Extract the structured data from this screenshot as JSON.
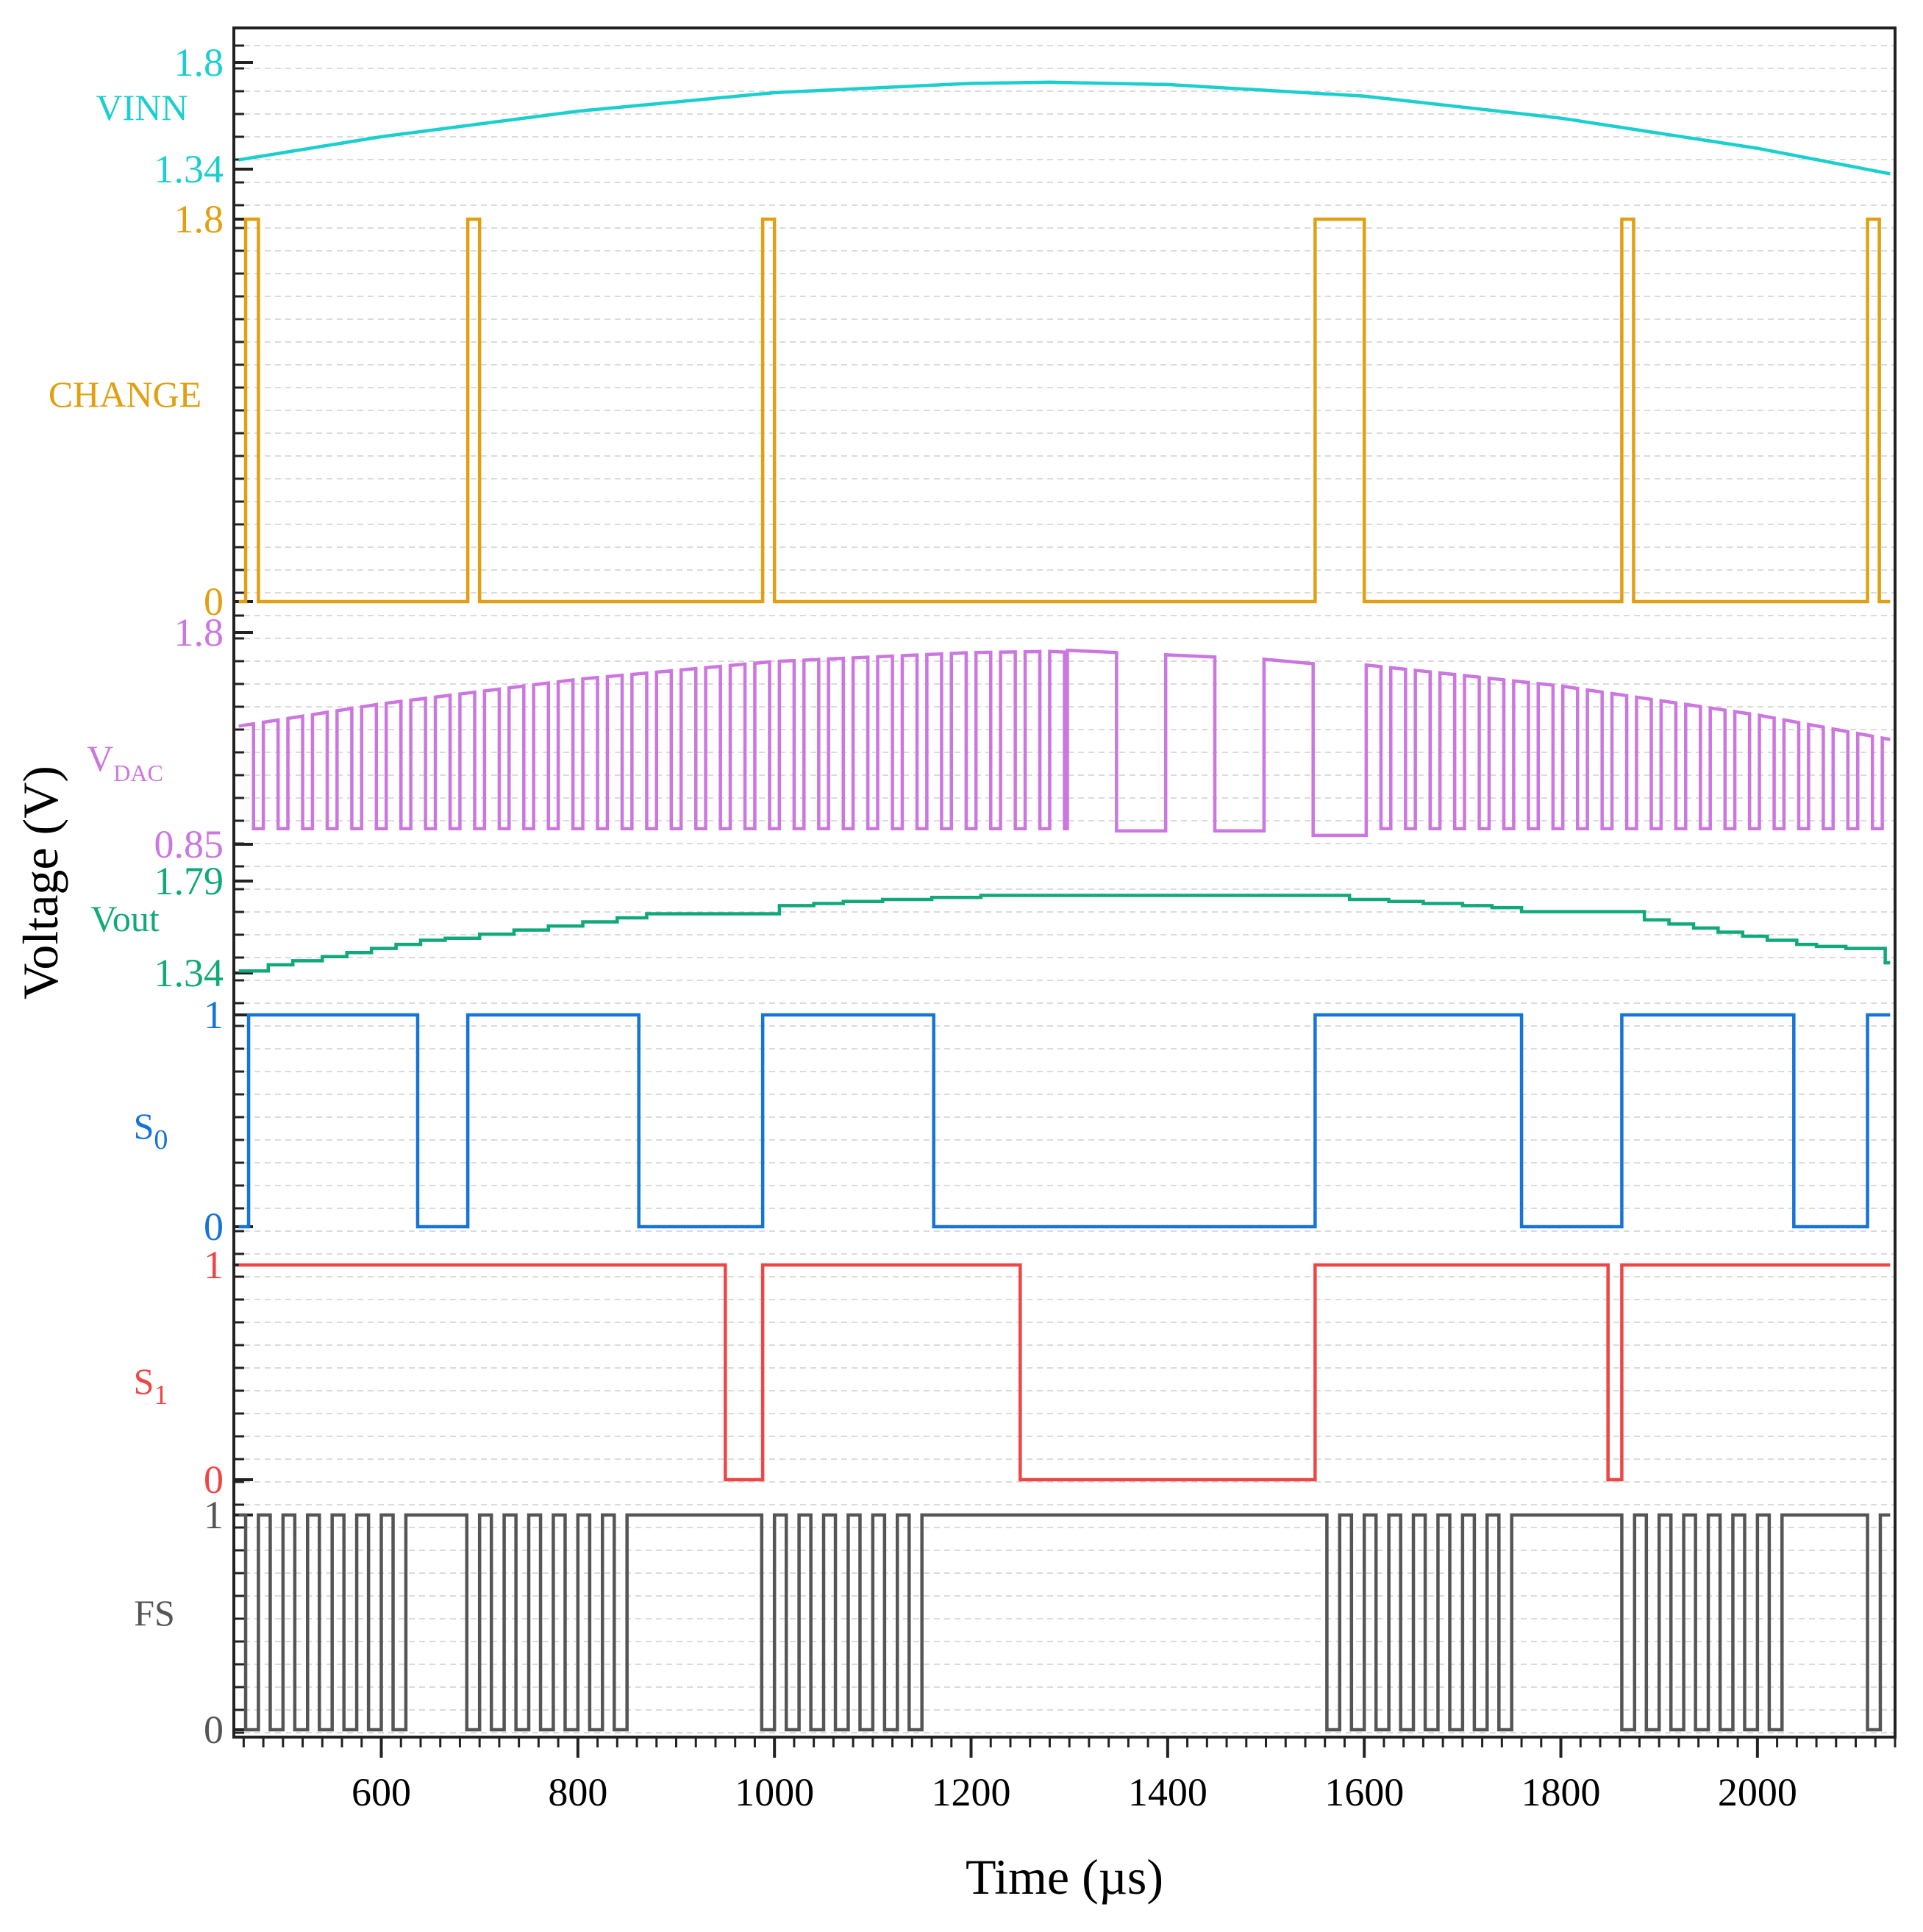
{
  "chart_data": {
    "type": "line",
    "title": "",
    "xlabel": "Time (µs)",
    "ylabel": "Voltage (V)",
    "xlim": [
      450,
      2140
    ],
    "x_ticks": [
      600,
      800,
      1000,
      1200,
      1400,
      1600,
      1800,
      2000
    ],
    "x_tick_labels": [
      "600",
      "800",
      "1000",
      "1200",
      "1400",
      "1600",
      "1800",
      "2000"
    ],
    "grid": "horizontal dashed",
    "series": [
      {
        "name": "VINN",
        "label": "VINN",
        "color": "#1ccfcf",
        "kind": "smooth",
        "ylim": [
          1.34,
          1.8
        ],
        "tick_labels": [
          {
            "value": 1.8,
            "text": "1.8"
          },
          {
            "value": 1.34,
            "text": "1.34"
          }
        ],
        "x": [
          455,
          600,
          800,
          1000,
          1200,
          1280,
          1400,
          1600,
          1800,
          2000,
          2135
        ],
        "y": [
          1.38,
          1.48,
          1.59,
          1.67,
          1.71,
          1.715,
          1.705,
          1.655,
          1.56,
          1.43,
          1.32
        ]
      },
      {
        "name": "CHANGE",
        "label": "CHANGE",
        "color": "#e1a012",
        "kind": "pulses",
        "ylim": [
          0,
          1.8
        ],
        "tick_labels": [
          {
            "value": 1.8,
            "text": "1.8"
          },
          {
            "value": 0,
            "text": "0"
          }
        ],
        "pulses": [
          [
            462,
            475
          ],
          [
            688,
            700
          ],
          [
            988,
            1000
          ],
          [
            1550,
            1600
          ],
          [
            1862,
            1874
          ],
          [
            2112,
            2124
          ]
        ]
      },
      {
        "name": "VDAC",
        "label": "V",
        "label_subscript": "DAC",
        "color": "#cc77e0",
        "kind": "dac",
        "ylim": [
          0.85,
          1.8
        ],
        "tick_labels": [
          {
            "value": 1.8,
            "text": "1.8"
          },
          {
            "value": 0.85,
            "text": "0.85"
          }
        ],
        "square_segments": [
          [
            455,
            1298
          ],
          [
            1602,
            2135
          ]
        ],
        "square_period": 25,
        "low_level": 0.92,
        "high_envelope_x": [
          455,
          600,
          800,
          1000,
          1200,
          1280,
          1600,
          1800,
          2000,
          2135
        ],
        "high_envelope_y": [
          1.38,
          1.48,
          1.59,
          1.67,
          1.71,
          1.715,
          1.655,
          1.56,
          1.43,
          1.32
        ],
        "blocks": [
          {
            "x0": 1298,
            "x1": 1348,
            "y0": 1.72,
            "y1": 1.71
          },
          {
            "x0": 1348,
            "x1": 1398,
            "y0": 0.91,
            "y1": 0.91
          },
          {
            "x0": 1398,
            "x1": 1448,
            "y0": 1.7,
            "y1": 1.69
          },
          {
            "x0": 1448,
            "x1": 1498,
            "y0": 0.91,
            "y1": 0.91
          },
          {
            "x0": 1498,
            "x1": 1548,
            "y0": 1.68,
            "y1": 1.66
          },
          {
            "x0": 1548,
            "x1": 1602,
            "y0": 0.89,
            "y1": 0.89
          }
        ]
      },
      {
        "name": "Vout",
        "label": "Vout",
        "color": "#11a97a",
        "kind": "staircase",
        "ylim": [
          1.34,
          1.79
        ],
        "tick_labels": [
          {
            "value": 1.79,
            "text": "1.79"
          },
          {
            "value": 1.34,
            "text": "1.34"
          }
        ],
        "steps": [
          {
            "x": 455,
            "y": 1.35
          },
          {
            "x": 485,
            "y": 1.38
          },
          {
            "x": 510,
            "y": 1.4
          },
          {
            "x": 540,
            "y": 1.42
          },
          {
            "x": 565,
            "y": 1.44
          },
          {
            "x": 590,
            "y": 1.46
          },
          {
            "x": 615,
            "y": 1.48
          },
          {
            "x": 640,
            "y": 1.5
          },
          {
            "x": 665,
            "y": 1.51
          },
          {
            "x": 700,
            "y": 1.53
          },
          {
            "x": 735,
            "y": 1.55
          },
          {
            "x": 770,
            "y": 1.57
          },
          {
            "x": 805,
            "y": 1.59
          },
          {
            "x": 840,
            "y": 1.61
          },
          {
            "x": 870,
            "y": 1.63
          },
          {
            "x": 1005,
            "y": 1.67
          },
          {
            "x": 1040,
            "y": 1.68
          },
          {
            "x": 1070,
            "y": 1.69
          },
          {
            "x": 1110,
            "y": 1.7
          },
          {
            "x": 1160,
            "y": 1.71
          },
          {
            "x": 1210,
            "y": 1.72
          },
          {
            "x": 1585,
            "y": 1.7
          },
          {
            "x": 1625,
            "y": 1.69
          },
          {
            "x": 1660,
            "y": 1.68
          },
          {
            "x": 1700,
            "y": 1.67
          },
          {
            "x": 1730,
            "y": 1.66
          },
          {
            "x": 1760,
            "y": 1.64
          },
          {
            "x": 1885,
            "y": 1.6
          },
          {
            "x": 1910,
            "y": 1.58
          },
          {
            "x": 1935,
            "y": 1.56
          },
          {
            "x": 1960,
            "y": 1.54
          },
          {
            "x": 1985,
            "y": 1.52
          },
          {
            "x": 2010,
            "y": 1.5
          },
          {
            "x": 2040,
            "y": 1.48
          },
          {
            "x": 2060,
            "y": 1.47
          },
          {
            "x": 2090,
            "y": 1.46
          },
          {
            "x": 2130,
            "y": 1.39
          }
        ],
        "end_x": 2135
      },
      {
        "name": "S0",
        "label": "S",
        "label_subscript": "0",
        "color": "#1673d8",
        "kind": "pulses",
        "ylim": [
          0,
          1
        ],
        "tick_labels": [
          {
            "value": 1,
            "text": "1"
          },
          {
            "value": 0,
            "text": "0"
          }
        ],
        "pulses": [
          [
            465,
            637
          ],
          [
            688,
            862
          ],
          [
            988,
            1162
          ],
          [
            1550,
            1760
          ],
          [
            1862,
            2037
          ],
          [
            2112,
            2135
          ]
        ]
      },
      {
        "name": "S1",
        "label": "S",
        "label_subscript": "1",
        "color": "#ee4545",
        "kind": "pulses",
        "ylim": [
          0,
          1
        ],
        "tick_labels": [
          {
            "value": 1,
            "text": "1"
          },
          {
            "value": 0,
            "text": "0"
          }
        ],
        "pulses": [
          [
            450,
            950
          ],
          [
            988,
            1250
          ],
          [
            1550,
            1848
          ],
          [
            1862,
            2135
          ]
        ]
      },
      {
        "name": "FS",
        "label": "FS",
        "color": "#555555",
        "kind": "pulses",
        "ylim": [
          0,
          1
        ],
        "tick_labels": [
          {
            "value": 1,
            "text": "1"
          },
          {
            "value": 0,
            "text": "0"
          }
        ],
        "pulses": [
          [
            450,
            462
          ],
          [
            475,
            487
          ],
          [
            500,
            512
          ],
          [
            525,
            537
          ],
          [
            550,
            562
          ],
          [
            575,
            587
          ],
          [
            600,
            612
          ],
          [
            625,
            687
          ],
          [
            700,
            712
          ],
          [
            725,
            737
          ],
          [
            750,
            762
          ],
          [
            775,
            787
          ],
          [
            800,
            812
          ],
          [
            825,
            837
          ],
          [
            850,
            987
          ],
          [
            1000,
            1012
          ],
          [
            1025,
            1037
          ],
          [
            1050,
            1062
          ],
          [
            1075,
            1087
          ],
          [
            1100,
            1112
          ],
          [
            1125,
            1137
          ],
          [
            1150,
            1562
          ],
          [
            1575,
            1587
          ],
          [
            1600,
            1612
          ],
          [
            1625,
            1637
          ],
          [
            1650,
            1662
          ],
          [
            1675,
            1687
          ],
          [
            1700,
            1712
          ],
          [
            1725,
            1737
          ],
          [
            1750,
            1862
          ],
          [
            1875,
            1887
          ],
          [
            1900,
            1912
          ],
          [
            1925,
            1937
          ],
          [
            1950,
            1962
          ],
          [
            1975,
            1987
          ],
          [
            2000,
            2012
          ],
          [
            2025,
            2112
          ],
          [
            2125,
            2135
          ]
        ]
      }
    ]
  }
}
